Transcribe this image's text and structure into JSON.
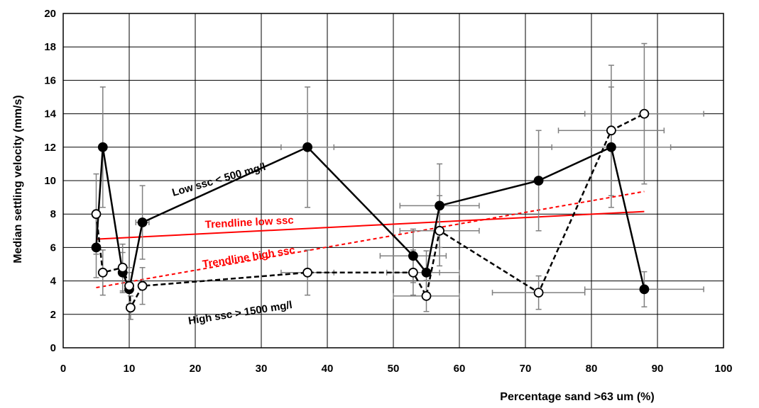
{
  "chart_data": {
    "type": "scatter",
    "title": "",
    "xlabel": "Percentage sand >63 um (%)",
    "ylabel": "Median settling velocity (mm/s)",
    "xlim": [
      0,
      100
    ],
    "ylim": [
      0,
      20
    ],
    "xticks": [
      "0",
      "10",
      "20",
      "30",
      "40",
      "50",
      "60",
      "70",
      "80",
      "90",
      "100"
    ],
    "yticks": [
      "0",
      "2",
      "4",
      "6",
      "8",
      "10",
      "12",
      "14",
      "16",
      "18",
      "20"
    ],
    "grid": true,
    "legend": "none",
    "colors": {
      "series": "#000000",
      "trendline": "#ff0000",
      "errorbar": "#808080",
      "grid": "#000000"
    },
    "series": [
      {
        "name": "Low ssc < 500 mg/l",
        "marker": "filled-circle",
        "line": "solid",
        "x": [
          5,
          6,
          9,
          10,
          12,
          37,
          53,
          55,
          57,
          72,
          83,
          88
        ],
        "y": [
          6.0,
          12.0,
          4.5,
          3.5,
          7.5,
          12.0,
          5.5,
          4.5,
          8.5,
          10.0,
          12.0,
          3.5
        ],
        "y_err": [
          1.8,
          3.6,
          1.2,
          1.0,
          2.2,
          3.6,
          1.6,
          1.3,
          2.5,
          3.0,
          3.6,
          1.05
        ],
        "x_err": [
          0,
          0,
          0,
          0,
          1,
          4,
          5,
          5,
          6,
          0,
          9,
          9
        ]
      },
      {
        "name": "High ssc > 1500 mg/l",
        "marker": "open-circle",
        "line": "dashed",
        "x": [
          5,
          6,
          9,
          10,
          10.2,
          12,
          37,
          53,
          55,
          57,
          72,
          83,
          88
        ],
        "y": [
          8.0,
          4.5,
          4.8,
          3.7,
          2.4,
          3.7,
          4.5,
          4.5,
          3.1,
          7.0,
          3.3,
          13.0,
          14.0
        ],
        "y_err": [
          2.4,
          1.35,
          1.4,
          1.1,
          0.7,
          1.1,
          1.35,
          1.35,
          0.93,
          2.1,
          1.0,
          3.9,
          4.2
        ],
        "x_err": [
          0,
          0,
          0,
          0,
          0,
          0,
          4,
          4,
          5,
          6,
          7,
          8,
          9
        ]
      }
    ],
    "trendlines": [
      {
        "name": "Trendline low ssc",
        "style": "solid",
        "x": [
          5,
          88
        ],
        "y": [
          6.5,
          8.15
        ]
      },
      {
        "name": "Trendline high ssc",
        "style": "dashed",
        "x": [
          5,
          88
        ],
        "y": [
          3.6,
          9.35
        ]
      }
    ],
    "annotations": [
      {
        "text": "Low ssc < 500 mg/l",
        "color": "#000000"
      },
      {
        "text": "Trendline low ssc",
        "color": "#ff0000"
      },
      {
        "text": "Trendline high ssc",
        "color": "#ff0000"
      },
      {
        "text": "High ssc > 1500 mg/l",
        "color": "#000000"
      }
    ]
  }
}
